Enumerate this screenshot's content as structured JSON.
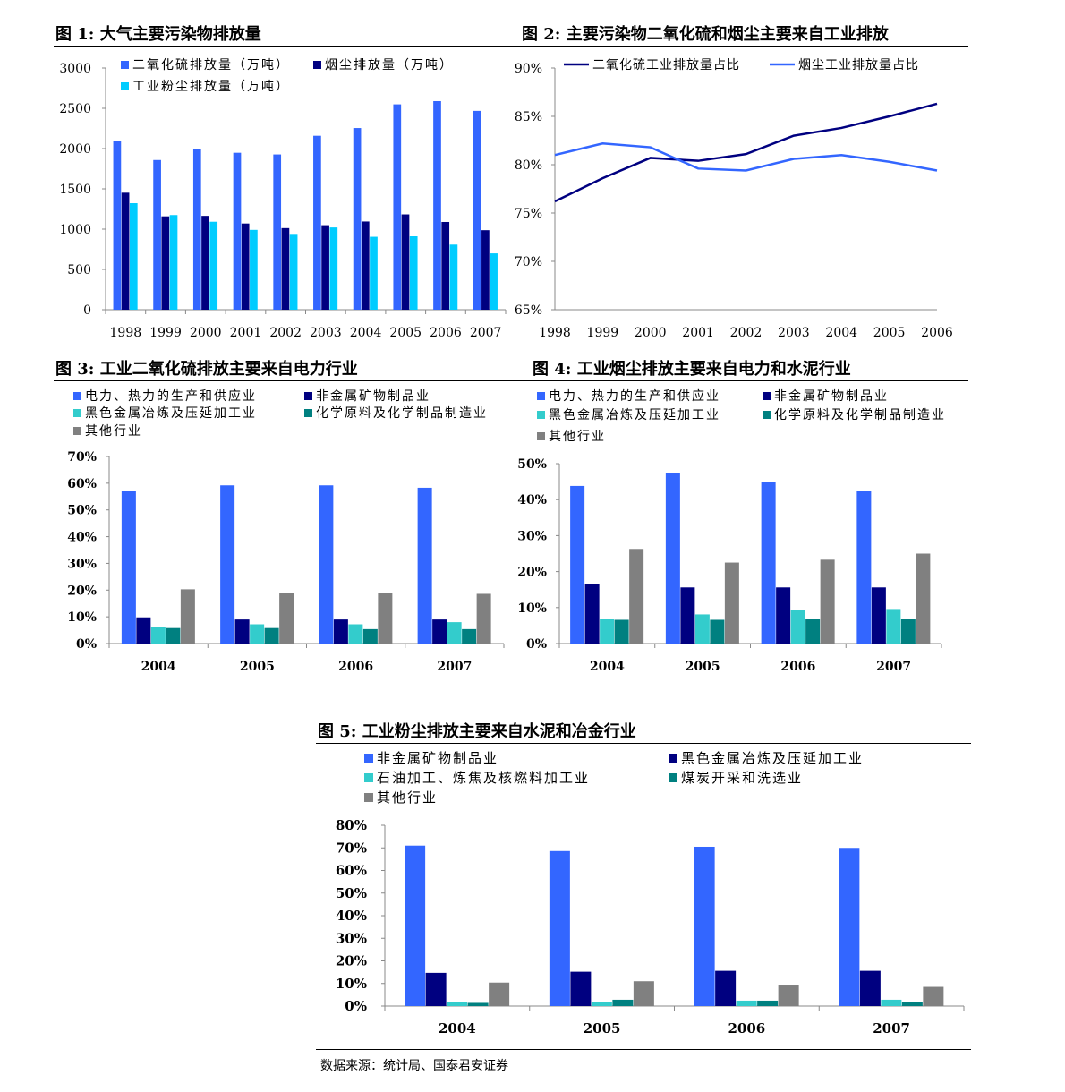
{
  "figures": [
    {
      "title": "图 1:  大气主要污染物排放量"
    },
    {
      "title": "图 2:  主要污染物二氧化硫和烟尘主要来自工业排放"
    },
    {
      "title": "图 3:  工业二氧化硫排放主要来自电力行业"
    },
    {
      "title": "图 4:  工业烟尘排放主要来自电力和水泥行业"
    },
    {
      "title": "图 5:  工业粉尘排放主要来自水泥和冶金行业"
    }
  ],
  "source": "数据来源：统计局、国泰君安证券",
  "chart_data": [
    {
      "type": "bar",
      "categories": [
        "1998",
        "1999",
        "2000",
        "2001",
        "2002",
        "2003",
        "2004",
        "2005",
        "2006",
        "2007"
      ],
      "series": [
        {
          "name": "二氧化硫排放量（万吨）",
          "color": "#3366ff",
          "values": [
            2090,
            1858,
            1995,
            1948,
            1927,
            2159,
            2255,
            2549,
            2589,
            2468
          ]
        },
        {
          "name": "烟尘排放量（万吨）",
          "color": "#000080",
          "values": [
            1452,
            1159,
            1165,
            1070,
            1013,
            1049,
            1095,
            1183,
            1089,
            987
          ]
        },
        {
          "name": "工业粉尘排放量（万吨）",
          "color": "#00ccff",
          "values": [
            1322,
            1175,
            1092,
            991,
            941,
            1021,
            905,
            911,
            808,
            699
          ]
        }
      ],
      "ylim": [
        0,
        3000
      ],
      "yticks": [
        "0",
        "500",
        "1000",
        "1500",
        "2000",
        "2500",
        "3000"
      ],
      "legend": "top"
    },
    {
      "type": "line",
      "x": [
        "1998",
        "1999",
        "2000",
        "2001",
        "2002",
        "2003",
        "2004",
        "2005",
        "2006"
      ],
      "series": [
        {
          "name": "二氧化硫工业排放量占比",
          "color": "#000080",
          "values": [
            76.2,
            78.6,
            80.7,
            80.4,
            81.1,
            83.0,
            83.8,
            85.0,
            86.3
          ]
        },
        {
          "name": "烟尘工业排放量占比",
          "color": "#3366ff",
          "values": [
            81.0,
            82.2,
            81.8,
            79.6,
            79.4,
            80.6,
            81.0,
            80.3,
            79.4
          ]
        }
      ],
      "ylim": [
        65,
        90
      ],
      "yticks": [
        "65%",
        "70%",
        "75%",
        "80%",
        "85%",
        "90%"
      ],
      "legend": "top"
    },
    {
      "type": "bar",
      "categories": [
        "2004",
        "2005",
        "2006",
        "2007"
      ],
      "series": [
        {
          "name": "电力、热力的生产和供应业",
          "color": "#3366ff",
          "values": [
            57,
            59.2,
            59.2,
            58.3
          ]
        },
        {
          "name": "非金属矿物制品业",
          "color": "#000080",
          "values": [
            9.8,
            9.0,
            9.0,
            9.0
          ]
        },
        {
          "name": "黑色金属冶炼及压延加工业",
          "color": "#33cccc",
          "values": [
            6.3,
            7.2,
            7.2,
            8.0
          ]
        },
        {
          "name": "化学原料及化学制品制造业",
          "color": "#008080",
          "values": [
            5.8,
            5.8,
            5.4,
            5.4
          ]
        },
        {
          "name": "其他行业",
          "color": "#808080",
          "values": [
            20.3,
            19.0,
            19.0,
            18.6
          ]
        }
      ],
      "ylim": [
        0,
        70
      ],
      "yticks": [
        "0%",
        "10%",
        "20%",
        "30%",
        "40%",
        "50%",
        "60%",
        "70%"
      ],
      "legend": "top"
    },
    {
      "type": "bar",
      "categories": [
        "2004",
        "2005",
        "2006",
        "2007"
      ],
      "series": [
        {
          "name": "电力、热力的生产和供应业",
          "color": "#3366ff",
          "values": [
            43.8,
            47.3,
            44.8,
            42.5
          ]
        },
        {
          "name": "非金属矿物制品业",
          "color": "#000080",
          "values": [
            16.5,
            15.6,
            15.6,
            15.6
          ]
        },
        {
          "name": "黑色金属冶炼及压延加工业",
          "color": "#33cccc",
          "values": [
            6.8,
            8.1,
            9.3,
            9.6
          ]
        },
        {
          "name": "化学原料及化学制品制造业",
          "color": "#008080",
          "values": [
            6.6,
            6.6,
            6.8,
            6.8
          ]
        },
        {
          "name": "其他行业",
          "color": "#808080",
          "values": [
            26.3,
            22.5,
            23.3,
            25.0
          ]
        }
      ],
      "ylim": [
        0,
        50
      ],
      "yticks": [
        "0%",
        "10%",
        "20%",
        "30%",
        "40%",
        "50%"
      ],
      "legend": "top"
    },
    {
      "type": "bar",
      "categories": [
        "2004",
        "2005",
        "2006",
        "2007"
      ],
      "series": [
        {
          "name": "非金属矿物制品业",
          "color": "#3366ff",
          "values": [
            71.0,
            68.6,
            70.5,
            70.0
          ]
        },
        {
          "name": "黑色金属冶炼及压延加工业",
          "color": "#000080",
          "values": [
            14.7,
            15.2,
            15.6,
            15.6
          ]
        },
        {
          "name": "石油加工、炼焦及核燃料加工业",
          "color": "#33cccc",
          "values": [
            1.8,
            1.8,
            2.4,
            2.8
          ]
        },
        {
          "name": "煤炭开采和洗选业",
          "color": "#008080",
          "values": [
            1.4,
            2.8,
            2.4,
            1.8
          ]
        },
        {
          "name": "其他行业",
          "color": "#808080",
          "values": [
            10.4,
            11.0,
            9.1,
            8.5
          ]
        }
      ],
      "ylim": [
        0,
        80
      ],
      "yticks": [
        "0%",
        "10%",
        "20%",
        "30%",
        "40%",
        "50%",
        "60%",
        "70%",
        "80%"
      ],
      "legend": "top"
    }
  ]
}
